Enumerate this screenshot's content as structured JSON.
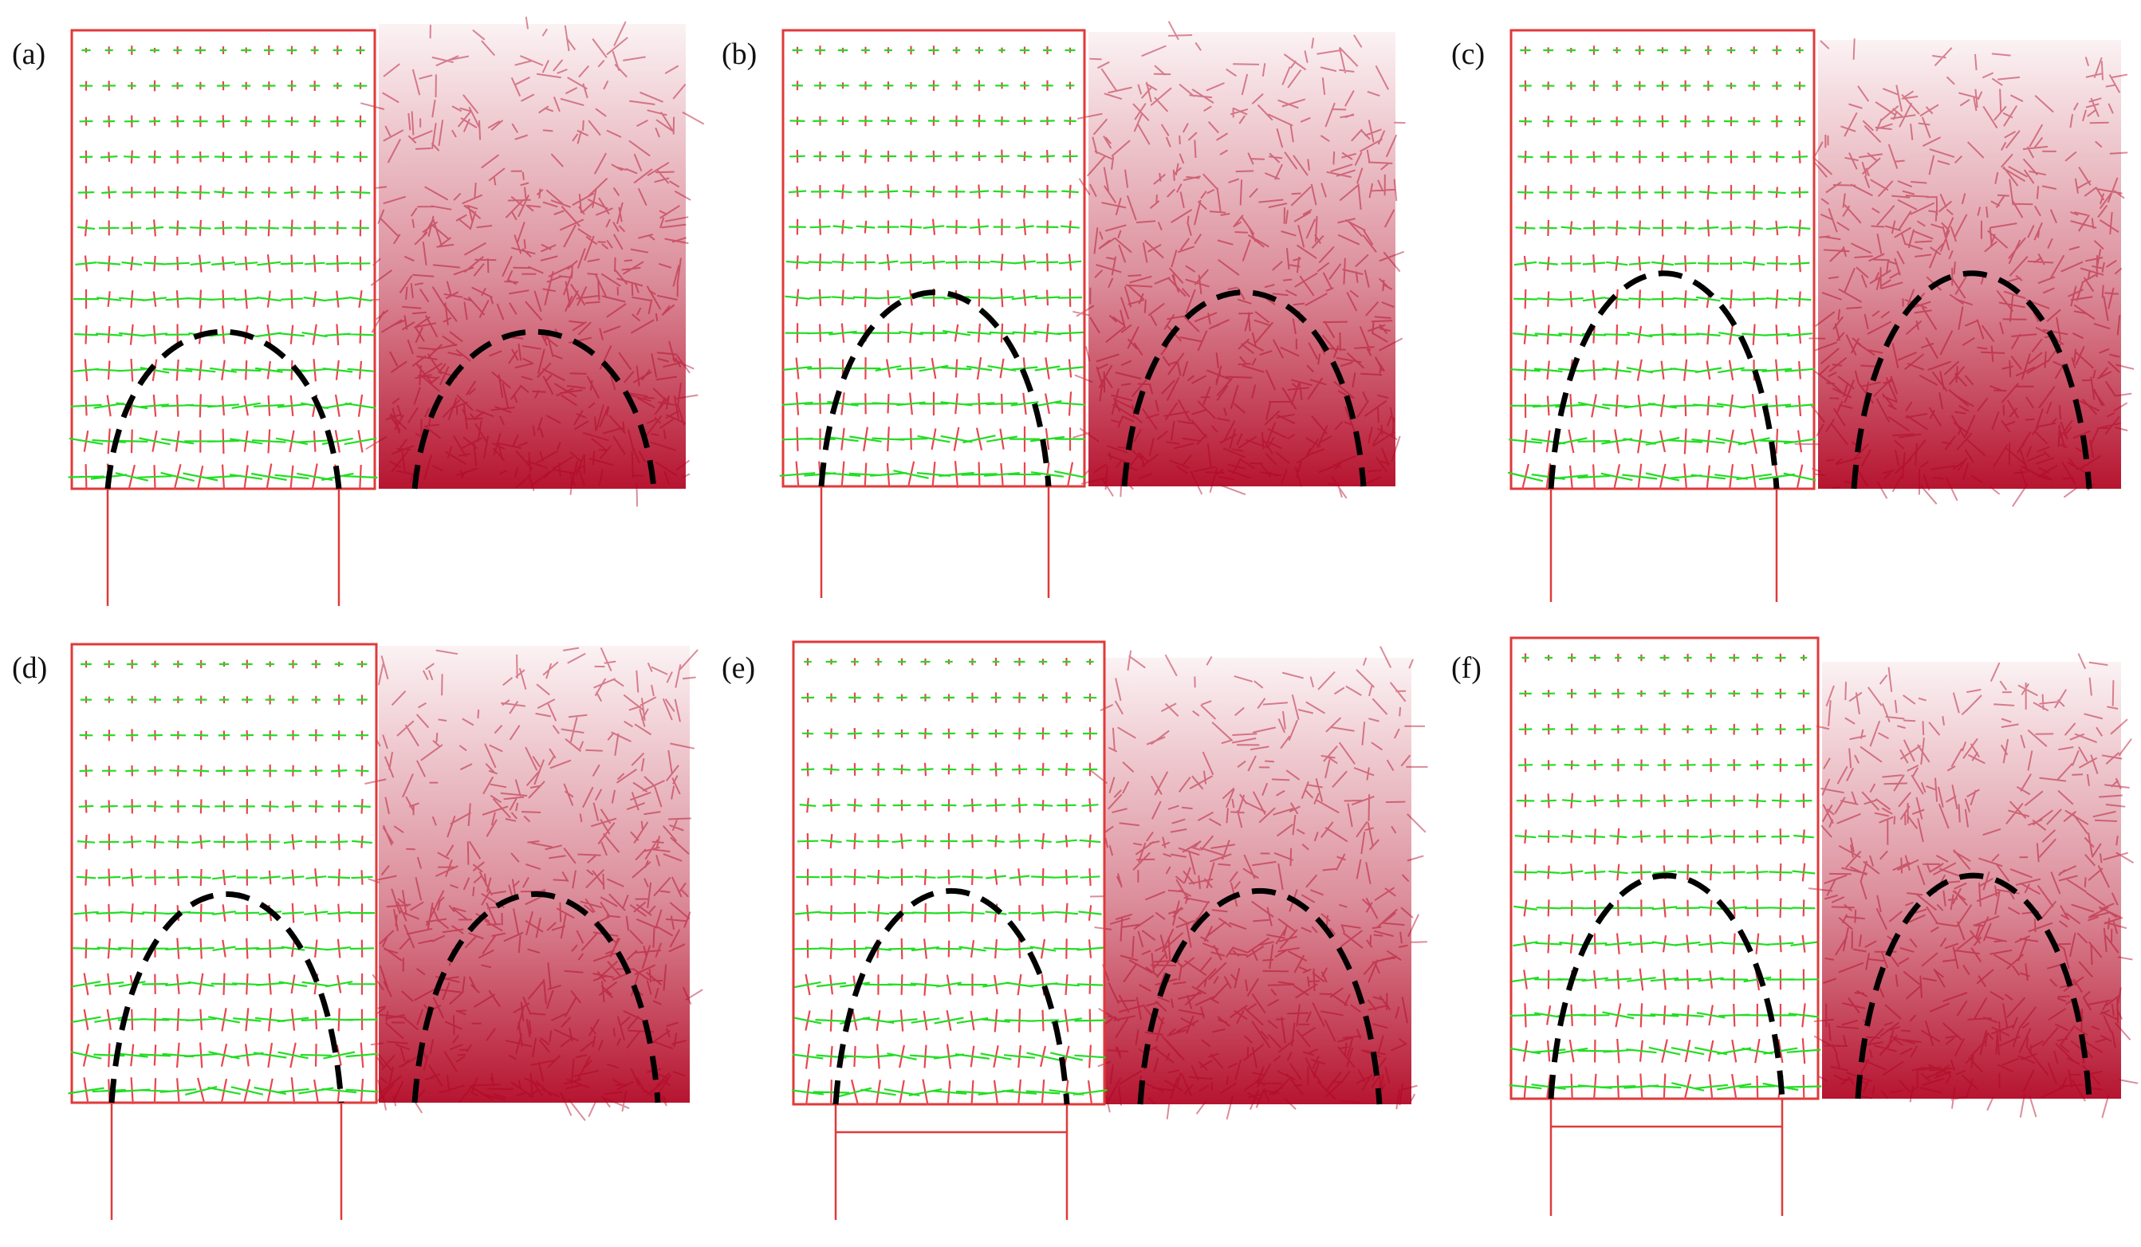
{
  "figure": {
    "panels": [
      {
        "label": "(a)",
        "arch_top_fraction": 0.3
      },
      {
        "label": "(b)",
        "arch_top_fraction": 0.41
      },
      {
        "label": "(c)",
        "arch_top_fraction": 0.47
      },
      {
        "label": "(d)",
        "arch_top_fraction": 0.45
      },
      {
        "label": "(e)",
        "arch_top_fraction": 0.46
      },
      {
        "label": "(f)",
        "arch_top_fraction": 0.49
      }
    ],
    "colors": {
      "frame": "#e03a3a",
      "vector_green": "#22dd22",
      "vector_red": "#e8454d",
      "force_chain": "#b0001e",
      "arch_line": "#000000"
    }
  }
}
